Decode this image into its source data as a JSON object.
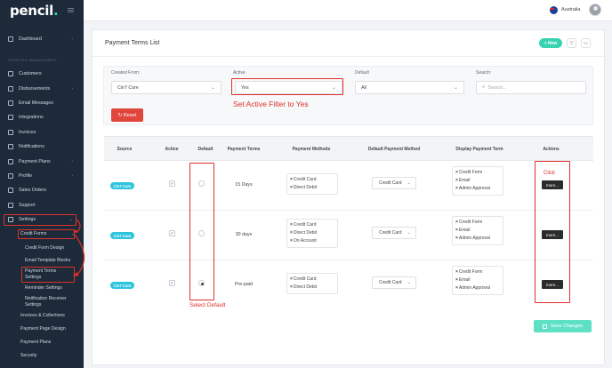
{
  "sidebar": {
    "logo": "pencil",
    "section_label": "SUPPLIER MANAGEMENT",
    "dashboard": "Dashboard",
    "customers": "Customers",
    "disbursements": "Disbursements",
    "email_messages": "Email Messages",
    "integrations": "Integrations",
    "invoices": "Invoices",
    "notifications": "Notifications",
    "payment_plans": "Payment Plans",
    "profile": "Profile",
    "sales_orders": "Sales Orders",
    "support": "Support",
    "settings": "Settings",
    "credit_forms": "Credit Forms",
    "credit_form_design": "Credit Form Design",
    "email_template_blocks": "Email Template Blocks",
    "payment_terms_settings": "Payment Terms Settings",
    "reminder_settings": "Reminder Settings",
    "notification_receiver_settings": "Notification Receiver Settings",
    "invoices_collections": "Invoices & Collections",
    "payment_page_design": "Payment Page Design",
    "payment_plans_sub": "Payment Plans",
    "security": "Security"
  },
  "topbar": {
    "country": "Australia"
  },
  "page": {
    "title": "Payment Terms List",
    "new_label": "New"
  },
  "filters": {
    "created_from_label": "Created From:",
    "created_from_value": "Cin7 Core",
    "active_label": "Active",
    "active_value": "Yes",
    "default_label": "Default",
    "default_value": "All",
    "search_label": "Search:",
    "search_placeholder": "Search...",
    "reset_label": "Reset"
  },
  "annotations": {
    "active_filter": "Set Active Filter to Yes",
    "select_default": "Select Default",
    "click": "Click"
  },
  "table": {
    "headers": {
      "source": "Source",
      "active": "Active",
      "default": "Default",
      "payment_terms": "Payment Terms",
      "payment_methods": "Payment Methods",
      "default_payment_method": "Default Payment Method",
      "display_payment_term": "Display Payment Term",
      "actions": "Actions"
    },
    "rows": [
      {
        "source": "Cin7 Core",
        "active_check": "✓",
        "default_selected": false,
        "term": "15 Days",
        "methods": [
          "Credit Card",
          "Direct Debit"
        ],
        "default_method": "Credit Card",
        "display": [
          "Credit Form",
          "Email",
          "Admin Approval"
        ],
        "more": "more..."
      },
      {
        "source": "Cin7 Core",
        "active_check": "✓",
        "default_selected": false,
        "term": "30 days",
        "methods": [
          "Credit Card",
          "Direct Debit",
          "On Account"
        ],
        "default_method": "Credit Card",
        "display": [
          "Credit Form",
          "Email",
          "Admin Approval"
        ],
        "more": "more..."
      },
      {
        "source": "Cin7 Core",
        "active_check": "✓",
        "default_selected": true,
        "term": "Pre-paid",
        "methods": [
          "Credit Card",
          "Direct Debit"
        ],
        "default_method": "Credit Card",
        "display": [
          "Credit Form",
          "Email",
          "Admin Approval"
        ],
        "more": "more..."
      }
    ]
  },
  "save_label": "Save Changes",
  "colors": {
    "accent": "#37d3b0",
    "annotation": "#e0302a",
    "sidebar": "#1c2a3a",
    "badge": "#2ec4de"
  }
}
